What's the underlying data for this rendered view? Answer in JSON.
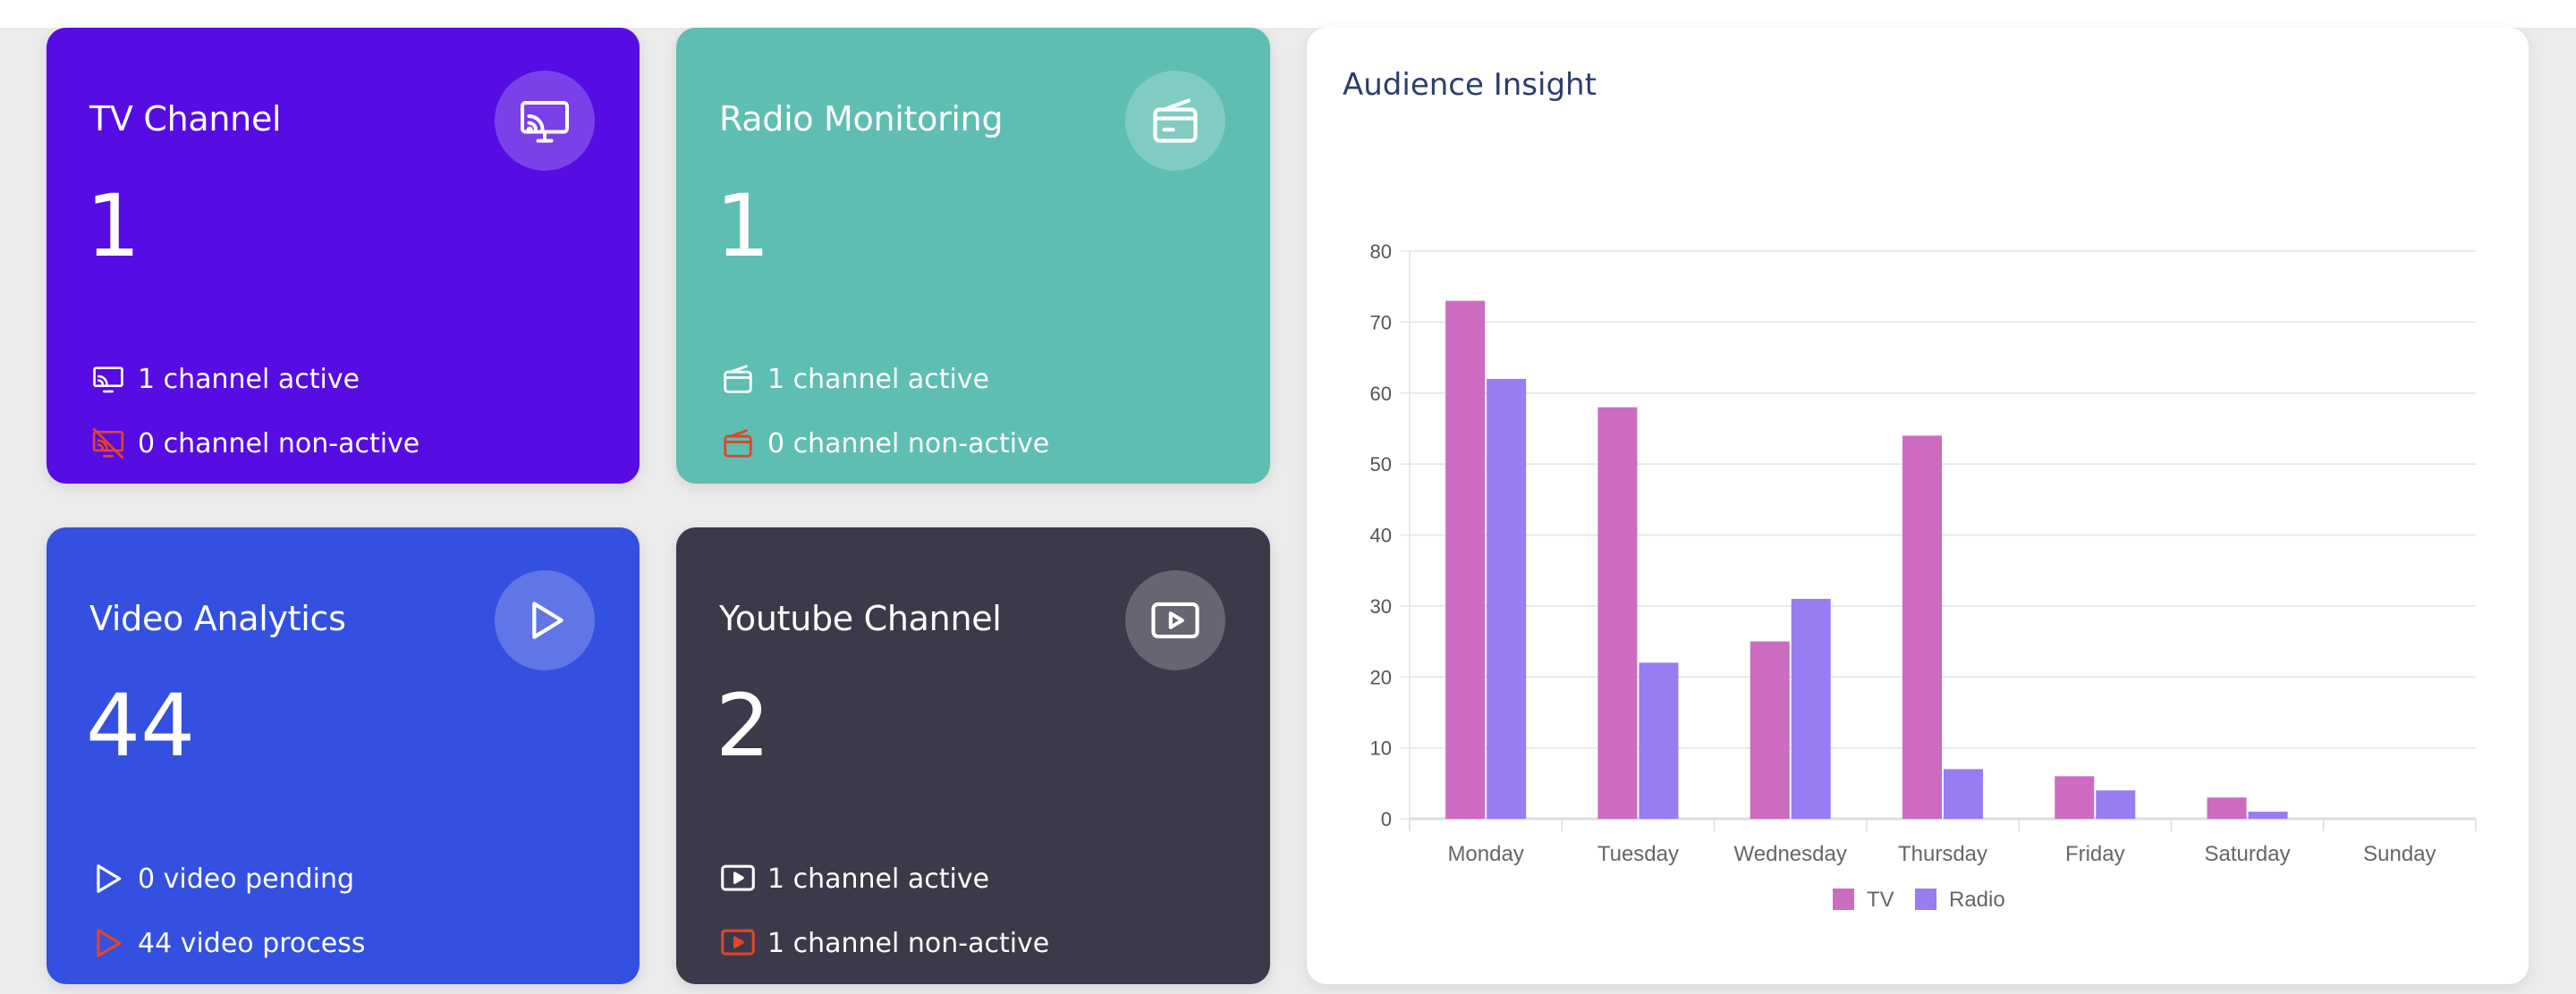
{
  "cards": {
    "tv": {
      "title": "TV Channel",
      "count": "1",
      "line1": "1 channel active",
      "line2": "0 channel non-active",
      "background": "#560ce3",
      "icon": "cast-icon"
    },
    "radio": {
      "title": "Radio Monitoring",
      "count": "1",
      "line1": "1 channel active",
      "line2": "0 channel non-active",
      "background": "#5ebeb1",
      "icon": "radio-icon"
    },
    "video": {
      "title": "Video Analytics",
      "count": "44",
      "line1": "0 video pending",
      "line2": "44 video process",
      "background": "#3450e0",
      "icon": "play-icon"
    },
    "youtube": {
      "title": "Youtube Channel",
      "count": "2",
      "line1": "1 channel active",
      "line2": "1 channel non-active",
      "background": "#3c3a4a",
      "icon": "youtube-icon"
    }
  },
  "alert_color": "#e3442b",
  "chart_panel": {
    "title": "Audience Insight"
  },
  "chart_data": {
    "type": "bar",
    "title": "Audience Insight",
    "categories": [
      "Monday",
      "Tuesday",
      "Wednesday",
      "Thursday",
      "Friday",
      "Saturday",
      "Sunday"
    ],
    "series": [
      {
        "name": "TV",
        "color": "#cc6bbf",
        "values": [
          73,
          58,
          25,
          54,
          6,
          3,
          0
        ]
      },
      {
        "name": "Radio",
        "color": "#997bf2",
        "values": [
          62,
          22,
          31,
          7,
          4,
          1,
          0
        ]
      }
    ],
    "yticks": [
      "0",
      "10",
      "20",
      "30",
      "40",
      "50",
      "60",
      "70",
      "80"
    ],
    "ylim": [
      0,
      80
    ],
    "grid": true,
    "legend": "bottom"
  }
}
